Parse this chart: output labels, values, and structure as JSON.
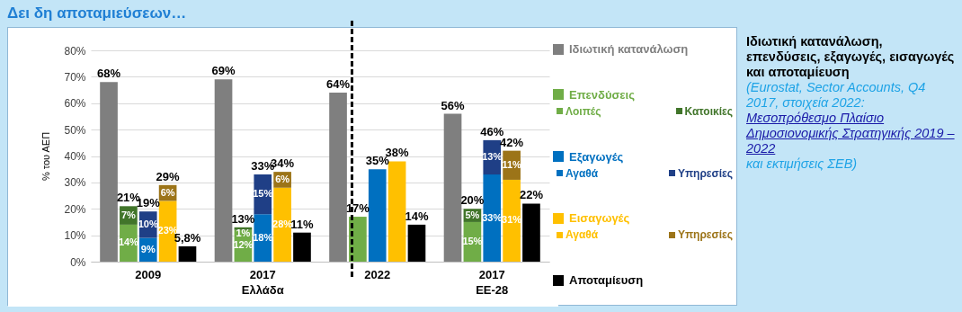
{
  "chart_data": {
    "type": "bar",
    "title": "Δει δη αποταμιεύσεων…",
    "subtitle": "Ιδιωτική κατανάλωση, επενδύσεις, εξαγωγές, εισαγωγές και αποταμίευση",
    "annotations": [
      "(Eurostat, Sector Accounts, Q4 2017, στοιχεία 2022:",
      "Μεσοπρόθεσμο Πλαίσιο Δημοσιονομικής Στρατηγικής 2019 – 2022",
      "και εκτιμήσεις ΣΕΒ)"
    ],
    "ylabel": "% του ΑΕΠ",
    "categories": [
      null,
      null,
      "2009",
      null,
      null,
      null,
      null,
      "2017\nΕλλάδα",
      null,
      null,
      null,
      null,
      "2022",
      null,
      null,
      null,
      null,
      "2017\nΕΕ-28",
      null,
      null
    ],
    "stacked": true,
    "series": [
      {
        "name": "Ιδιωτική κατανάλωση",
        "color": "#7f7f7f",
        "values": [
          68,
          null,
          null,
          null,
          null,
          69,
          null,
          null,
          null,
          null,
          64,
          null,
          null,
          null,
          null,
          56,
          null,
          null,
          null,
          null
        ],
        "value_labels": [
          "68%",
          null,
          null,
          null,
          null,
          "69%",
          null,
          null,
          null,
          null,
          "64%",
          null,
          null,
          null,
          null,
          "56%",
          null,
          null,
          null,
          null
        ]
      },
      {
        "name": "Επενδύσεις",
        "color": "#70ad47",
        "values": [
          null,
          null,
          null,
          null,
          null,
          null,
          null,
          null,
          null,
          null,
          null,
          null,
          null,
          null,
          null,
          null,
          null,
          null,
          null,
          null
        ]
      },
      {
        "name": "Λοιπές",
        "color": "#70ad47",
        "values": [
          null,
          14,
          null,
          null,
          null,
          null,
          12,
          null,
          null,
          null,
          null,
          17,
          null,
          null,
          null,
          null,
          15,
          null,
          null,
          null
        ],
        "value_labels": [
          null,
          "14%",
          null,
          null,
          null,
          null,
          "12%",
          null,
          null,
          null,
          null,
          "17%",
          null,
          null,
          null,
          null,
          "15%",
          null,
          null,
          null
        ]
      },
      {
        "name": "Κατοικίες",
        "color": "#41752a",
        "values": [
          null,
          7,
          null,
          null,
          null,
          null,
          1,
          null,
          null,
          null,
          null,
          null,
          null,
          null,
          null,
          null,
          5,
          null,
          null,
          null
        ],
        "value_labels": [
          null,
          "7%",
          null,
          null,
          null,
          null,
          "1%",
          null,
          null,
          null,
          null,
          null,
          null,
          null,
          null,
          null,
          "5%",
          null,
          null,
          null
        ]
      },
      {
        "name": "Εξαγωγές",
        "color": "#0070c0",
        "values": [
          null,
          null,
          null,
          null,
          null,
          null,
          null,
          null,
          null,
          null,
          null,
          null,
          null,
          null,
          null,
          null,
          null,
          null,
          null,
          null
        ]
      },
      {
        "name": "Αγαθά",
        "color": "#0070c0",
        "values": [
          null,
          null,
          9,
          null,
          null,
          null,
          null,
          18,
          null,
          null,
          null,
          null,
          35,
          null,
          null,
          null,
          null,
          33,
          null,
          null
        ],
        "value_labels": [
          null,
          null,
          "9%",
          null,
          null,
          null,
          null,
          "18%",
          null,
          null,
          null,
          null,
          "35%",
          null,
          null,
          null,
          null,
          "33%",
          null,
          null
        ]
      },
      {
        "name": "Υπηρεσίες",
        "color": "#1f3f86",
        "values": [
          null,
          null,
          10,
          null,
          null,
          null,
          null,
          15,
          null,
          null,
          null,
          null,
          null,
          null,
          null,
          null,
          null,
          13,
          null,
          null
        ],
        "value_labels": [
          null,
          null,
          "10%",
          null,
          null,
          null,
          null,
          "15%",
          null,
          null,
          null,
          null,
          null,
          null,
          null,
          null,
          null,
          "13%",
          null,
          null
        ]
      },
      {
        "name": "Εισαγωγές",
        "color": "#ffc000",
        "values": [
          null,
          null,
          null,
          null,
          null,
          null,
          null,
          null,
          null,
          null,
          null,
          null,
          null,
          null,
          null,
          null,
          null,
          null,
          null,
          null
        ]
      },
      {
        "name": "Αγαθά",
        "color": "#ffc000",
        "values": [
          null,
          null,
          null,
          23,
          null,
          null,
          null,
          null,
          28,
          null,
          null,
          null,
          null,
          38,
          null,
          null,
          null,
          null,
          31,
          null
        ],
        "value_labels": [
          null,
          null,
          null,
          "23%",
          null,
          null,
          null,
          null,
          "28%",
          null,
          null,
          null,
          null,
          "38%",
          null,
          null,
          null,
          null,
          "31%",
          null
        ]
      },
      {
        "name": "Υπηρεσίες",
        "color": "#9c7418",
        "values": [
          null,
          null,
          null,
          6,
          null,
          null,
          null,
          null,
          6,
          null,
          null,
          null,
          null,
          null,
          null,
          null,
          null,
          null,
          11,
          null
        ],
        "value_labels": [
          null,
          null,
          null,
          "6%",
          null,
          null,
          null,
          null,
          "6%",
          null,
          null,
          null,
          null,
          null,
          null,
          null,
          null,
          null,
          "11%",
          null
        ]
      },
      {
        "name": "Αποταμίευση",
        "color": "#000000",
        "values": [
          null,
          null,
          null,
          null,
          5.8,
          null,
          null,
          null,
          null,
          11,
          null,
          null,
          null,
          null,
          14,
          null,
          null,
          null,
          null,
          22
        ],
        "value_labels": [
          null,
          null,
          null,
          null,
          "5,8%",
          null,
          null,
          null,
          null,
          "11%",
          null,
          null,
          null,
          null,
          "14%",
          null,
          null,
          null,
          null,
          "22%"
        ]
      }
    ],
    "totals": [
      null,
      "21%",
      "19%",
      "29%",
      null,
      null,
      "13%",
      "33%",
      "34%",
      null,
      null,
      null,
      null,
      null,
      null,
      null,
      "20%",
      "46%",
      "42%",
      null
    ],
    "ylim": [
      0,
      80
    ],
    "yticks": [
      {
        "value": 0,
        "label": "0%"
      },
      {
        "value": 10,
        "label": "10%"
      },
      {
        "value": 20,
        "label": "20%"
      },
      {
        "value": 30,
        "label": "30%"
      },
      {
        "value": 40,
        "label": "40%"
      },
      {
        "value": 50,
        "label": "50%"
      },
      {
        "value": 60,
        "label": "60%"
      },
      {
        "value": 70,
        "label": "70%"
      },
      {
        "value": 80,
        "label": "80%"
      }
    ],
    "grid": "y",
    "legend": "right"
  }
}
